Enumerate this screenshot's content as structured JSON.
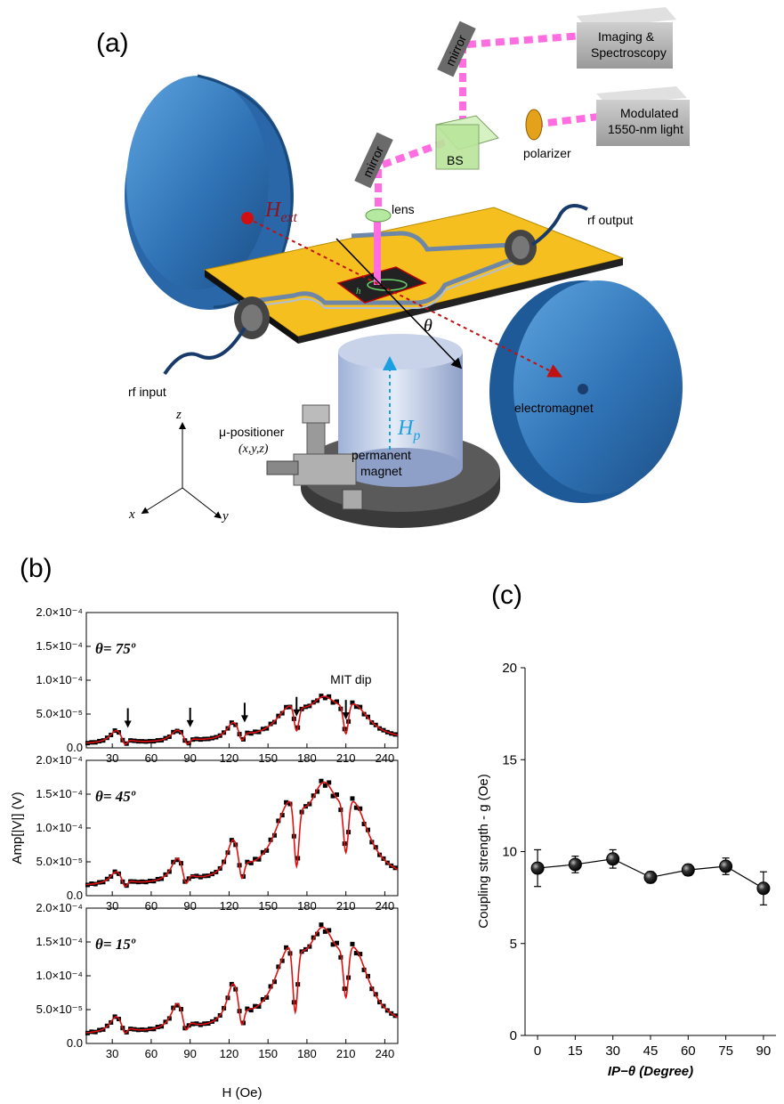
{
  "panels": {
    "a": "(a)",
    "b": "(b)",
    "c": "(c)"
  },
  "diagram": {
    "labels": {
      "imaging": [
        "Imaging &",
        "Spectroscopy"
      ],
      "modulated": [
        "Modulated",
        "1550-nm light"
      ],
      "mirror_top": "mirror",
      "mirror_left": "mirror",
      "bs": "BS",
      "polarizer": "polarizer",
      "lens": "lens",
      "rf_output": "rf output",
      "rf_input": "rf input",
      "electromagnet": "electromagnet",
      "h_ext": "H",
      "h_ext_sub": "ext",
      "h_p": "H",
      "h_p_sub": "p",
      "theta": "θ",
      "h_small": "h",
      "positioner": [
        "μ-positioner",
        "(x,y,z)"
      ],
      "permanent_magnet": [
        "permanent",
        "magnet"
      ],
      "axis_x": "x",
      "axis_y": "y",
      "axis_z": "z"
    },
    "colors": {
      "magnet": "#3a7fc0",
      "board": "#f5bf1f",
      "beam": "#ff6de0",
      "haxis": "#c01010",
      "hp": "#1aa0e0"
    }
  },
  "chart_data": [
    {
      "type": "scatter",
      "panel": "b",
      "xlabel": "H (Oe)",
      "ylabel": "Amp[|V|] (V)",
      "xlim": [
        10,
        250
      ],
      "ylim": [
        0,
        0.0002
      ],
      "xticks": [
        "30",
        "60",
        "90",
        "120",
        "150",
        "180",
        "210",
        "240"
      ],
      "yticks": [
        "0.0",
        "5.0×10⁻⁵",
        "1.0×10⁻⁴",
        "1.5×10⁻⁴",
        "2.0×10⁻⁴"
      ],
      "annotation": "MIT dip",
      "subplots": [
        {
          "theta_label": "θ= 75º",
          "peaks": [
            [
              33,
              2.7e-05
            ],
            [
              80,
              2.5e-05
            ],
            [
              123,
              3.3e-05
            ],
            [
              167,
              5.3e-05
            ],
            [
              193,
              6.2e-05
            ],
            [
              217,
              5.3e-05
            ]
          ],
          "dips": [
            [
              40,
              3e-06
            ],
            [
              88,
              3e-06
            ],
            [
              130,
              8e-06
            ],
            [
              172,
              1.6e-05
            ],
            [
              210,
              1e-05
            ]
          ],
          "base": 5e-06,
          "arrows_x": [
            42,
            90,
            132,
            172,
            210
          ]
        },
        {
          "theta_label": "θ= 45º",
          "peaks": [
            [
              33,
              3.5e-05
            ],
            [
              80,
              5.4e-05
            ],
            [
              123,
              7.4e-05
            ],
            [
              166,
              0.000123
            ],
            [
              193,
              0.000142
            ],
            [
              217,
              0.000115
            ]
          ],
          "dips": [
            [
              40,
              1.1e-05
            ],
            [
              87,
              1.4e-05
            ],
            [
              130,
              1.8e-05
            ],
            [
              172,
              2e-05
            ],
            [
              210,
              4.5e-05
            ]
          ],
          "base": 1.3e-05
        },
        {
          "theta_label": "θ= 15º",
          "peaks": [
            [
              33,
              4e-05
            ],
            [
              80,
              5.8e-05
            ],
            [
              123,
              8e-05
            ],
            [
              166,
              0.000125
            ],
            [
              192,
              0.000145
            ],
            [
              217,
              0.00012
            ]
          ],
          "dips": [
            [
              40,
              1.3e-05
            ],
            [
              87,
              1.6e-05
            ],
            [
              130,
              2e-05
            ],
            [
              171,
              2.2e-05
            ],
            [
              210,
              5e-05
            ]
          ],
          "base": 1.2e-05
        }
      ]
    },
    {
      "type": "line",
      "panel": "c",
      "xlabel": "IP−θ (Degree)",
      "ylabel": "Coupling strength - g (Oe)",
      "xlim": [
        -5,
        95
      ],
      "ylim": [
        0,
        20
      ],
      "xticks": [
        "0",
        "15",
        "30",
        "45",
        "60",
        "75",
        "90"
      ],
      "yticks": [
        "0",
        "5",
        "10",
        "15",
        "20"
      ],
      "x": [
        0,
        15,
        30,
        45,
        60,
        75,
        90
      ],
      "y": [
        9.1,
        9.3,
        9.6,
        8.6,
        9.0,
        9.2,
        8.0
      ],
      "err": [
        1.0,
        0.45,
        0.5,
        0.3,
        0.3,
        0.45,
        0.9
      ]
    }
  ]
}
